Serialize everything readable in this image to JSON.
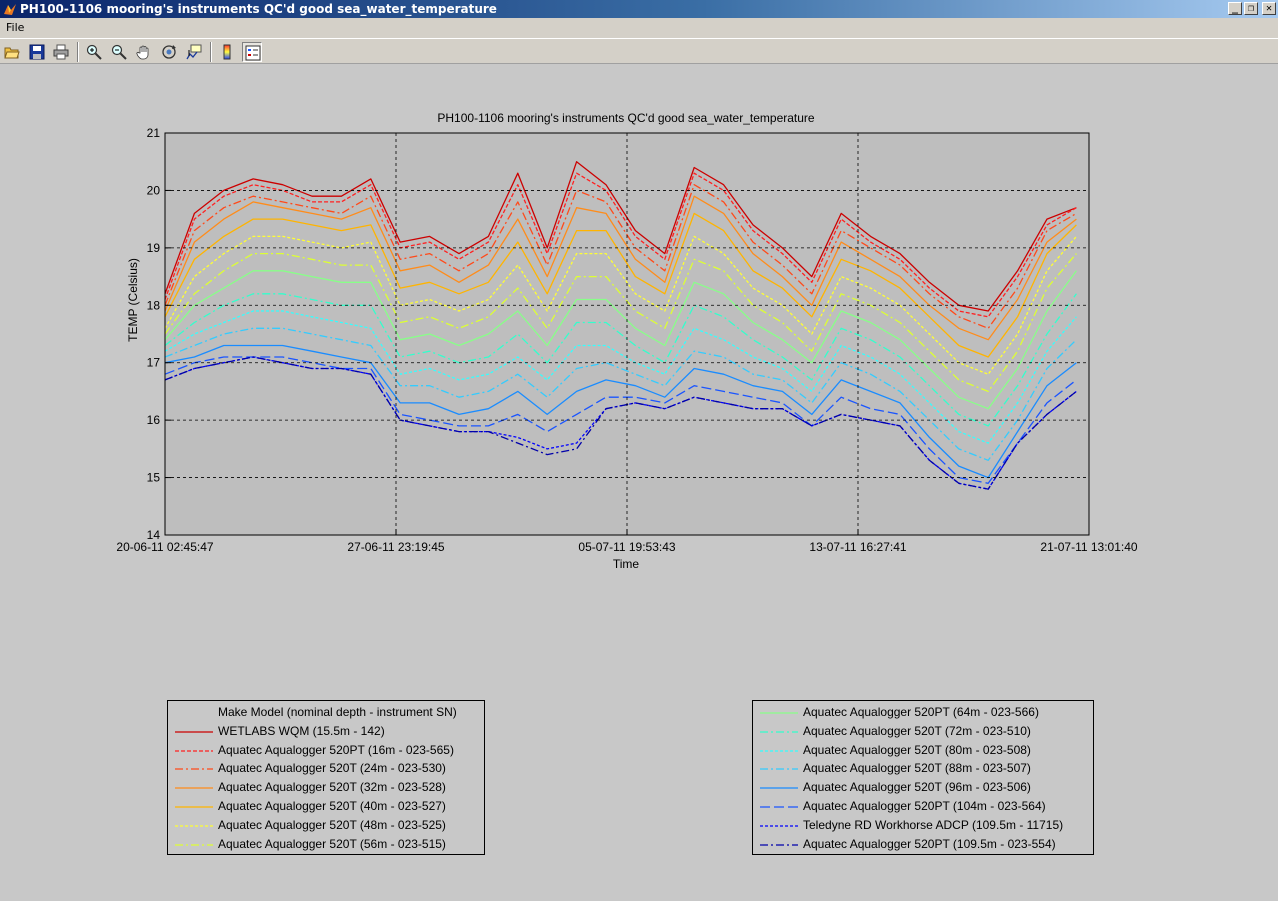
{
  "window": {
    "title": "PH100-1106 mooring's instruments QC'd good sea_water_temperature"
  },
  "menu": {
    "file_label": "File"
  },
  "toolbar": {
    "buttons": [
      "open-file-icon",
      "save-icon",
      "print-icon",
      "zoom-in-icon",
      "zoom-out-icon",
      "pan-icon",
      "rotate-3d-icon",
      "data-cursor-icon",
      "colorbar-icon",
      "legend-icon"
    ]
  },
  "chart_data": {
    "type": "line",
    "title": "PH100-1106 mooring's instruments QC'd good sea_water_temperature",
    "xlabel": "Time",
    "ylabel": "TEMP (Celsius)",
    "x_ticks": [
      "20-06-11 02:45:47",
      "27-06-11 23:19:45",
      "05-07-11 19:53:43",
      "13-07-11 16:27:41",
      "21-07-11 13:01:40"
    ],
    "xlim": [
      "20-06-11 02:45:47",
      "21-07-11 13:01:40"
    ],
    "ylim": [
      14,
      21
    ],
    "y_ticks": [
      14,
      15,
      16,
      17,
      18,
      19,
      20,
      21
    ],
    "grid": true,
    "x": [
      "20-06-11 02:45:47",
      "21-06-11 02:45:47",
      "22-06-11 02:45:47",
      "23-06-11 02:45:47",
      "24-06-11 02:45:47",
      "25-06-11 02:45:47",
      "26-06-11 02:45:47",
      "27-06-11 02:45:47",
      "28-06-11 02:45:47",
      "29-06-11 02:45:47",
      "30-06-11 02:45:47",
      "01-07-11 02:45:47",
      "02-07-11 02:45:47",
      "03-07-11 02:45:47",
      "04-07-11 02:45:47",
      "05-07-11 02:45:47",
      "06-07-11 02:45:47",
      "07-07-11 02:45:47",
      "08-07-11 02:45:47",
      "09-07-11 02:45:47",
      "10-07-11 02:45:47",
      "11-07-11 02:45:47",
      "12-07-11 02:45:47",
      "13-07-11 02:45:47",
      "14-07-11 02:45:47",
      "15-07-11 02:45:47",
      "16-07-11 02:45:47",
      "17-07-11 02:45:47",
      "18-07-11 02:45:47",
      "19-07-11 02:45:47",
      "20-07-11 02:45:47",
      "21-07-11 02:45:47"
    ],
    "series": [
      {
        "name": "WETLABS WQM (15.5m - 142)",
        "color": "#cc0000",
        "dash": "solid",
        "values": [
          18.2,
          19.6,
          20.0,
          20.2,
          20.1,
          19.9,
          19.9,
          20.2,
          19.1,
          19.2,
          18.9,
          19.2,
          20.3,
          19.0,
          20.5,
          20.1,
          19.3,
          18.9,
          20.4,
          20.1,
          19.4,
          19.0,
          18.5,
          19.6,
          19.2,
          18.9,
          18.4,
          18.0,
          17.9,
          18.6,
          19.5,
          19.7
        ]
      },
      {
        "name": "Aquatec Aqualogger 520PT (16m - 023-565)",
        "color": "#ff2020",
        "dash": "4 2",
        "values": [
          18.1,
          19.5,
          19.9,
          20.1,
          20.0,
          19.8,
          19.8,
          20.1,
          19.0,
          19.1,
          18.8,
          19.1,
          20.1,
          18.9,
          20.3,
          20.0,
          19.2,
          18.8,
          20.3,
          20.0,
          19.3,
          18.9,
          18.4,
          19.5,
          19.1,
          18.8,
          18.3,
          17.9,
          17.8,
          18.5,
          19.4,
          19.7
        ]
      },
      {
        "name": "Aquatec Aqualogger 520T (24m - 023-530)",
        "color": "#ff4a1a",
        "dash": "8 3 2 3",
        "values": [
          18.0,
          19.3,
          19.7,
          19.9,
          19.8,
          19.7,
          19.6,
          19.9,
          18.8,
          18.9,
          18.6,
          18.9,
          19.8,
          18.7,
          20.0,
          19.8,
          19.0,
          18.6,
          20.1,
          19.8,
          19.1,
          18.7,
          18.2,
          19.3,
          19.0,
          18.7,
          18.2,
          17.8,
          17.6,
          18.3,
          19.3,
          19.6
        ]
      },
      {
        "name": "Aquatec Aqualogger 520T (32m - 023-528)",
        "color": "#ff8c1a",
        "dash": "solid",
        "values": [
          17.9,
          19.1,
          19.5,
          19.8,
          19.7,
          19.6,
          19.5,
          19.7,
          18.6,
          18.7,
          18.4,
          18.7,
          19.5,
          18.5,
          19.7,
          19.6,
          18.8,
          18.4,
          19.9,
          19.6,
          18.9,
          18.5,
          18.0,
          19.1,
          18.8,
          18.5,
          18.0,
          17.6,
          17.4,
          18.1,
          19.1,
          19.5
        ]
      },
      {
        "name": "Aquatec Aqualogger 520T (40m - 023-527)",
        "color": "#ffb400",
        "dash": "solid",
        "values": [
          17.8,
          18.8,
          19.2,
          19.5,
          19.5,
          19.4,
          19.3,
          19.4,
          18.3,
          18.4,
          18.2,
          18.4,
          19.1,
          18.2,
          19.3,
          19.3,
          18.5,
          18.2,
          19.6,
          19.3,
          18.6,
          18.3,
          17.8,
          18.8,
          18.6,
          18.3,
          17.8,
          17.3,
          17.1,
          17.8,
          18.9,
          19.4
        ]
      },
      {
        "name": "Aquatec Aqualogger 520T (48m - 023-525)",
        "color": "#ffff33",
        "dash": "3 2",
        "values": [
          17.6,
          18.5,
          18.9,
          19.2,
          19.2,
          19.1,
          19.0,
          19.1,
          18.0,
          18.1,
          17.9,
          18.1,
          18.7,
          17.9,
          18.9,
          18.9,
          18.2,
          17.9,
          19.2,
          18.9,
          18.3,
          18.0,
          17.5,
          18.5,
          18.3,
          18.0,
          17.5,
          17.0,
          16.8,
          17.5,
          18.6,
          19.2
        ]
      },
      {
        "name": "Aquatec Aqualogger 520T (56m - 023-515)",
        "color": "#ddff33",
        "dash": "8 3 2 3",
        "values": [
          17.5,
          18.2,
          18.6,
          18.9,
          18.9,
          18.8,
          18.7,
          18.7,
          17.7,
          17.8,
          17.6,
          17.8,
          18.3,
          17.6,
          18.5,
          18.5,
          17.9,
          17.6,
          18.8,
          18.6,
          18.0,
          17.7,
          17.2,
          18.2,
          18.0,
          17.7,
          17.2,
          16.7,
          16.5,
          17.2,
          18.3,
          18.9
        ]
      },
      {
        "name": "Aquatec Aqualogger 520PT (64m - 023-566)",
        "color": "#88ff88",
        "dash": "solid",
        "values": [
          17.4,
          18.0,
          18.3,
          18.6,
          18.6,
          18.5,
          18.4,
          18.4,
          17.4,
          17.5,
          17.3,
          17.5,
          17.9,
          17.3,
          18.1,
          18.1,
          17.6,
          17.3,
          18.4,
          18.2,
          17.7,
          17.4,
          17.0,
          17.9,
          17.7,
          17.4,
          16.9,
          16.4,
          16.2,
          16.9,
          17.9,
          18.6
        ]
      },
      {
        "name": "Aquatec Aqualogger 520T (72m - 023-510)",
        "color": "#33ffcc",
        "dash": "8 3 2 3",
        "values": [
          17.3,
          17.7,
          18.0,
          18.2,
          18.2,
          18.1,
          18.0,
          18.0,
          17.1,
          17.2,
          17.0,
          17.1,
          17.5,
          17.0,
          17.7,
          17.7,
          17.3,
          17.0,
          18.0,
          17.8,
          17.4,
          17.1,
          16.7,
          17.6,
          17.4,
          17.1,
          16.6,
          16.1,
          15.9,
          16.6,
          17.5,
          18.2
        ]
      },
      {
        "name": "Aquatec Aqualogger 520T (80m - 023-508)",
        "color": "#33ffff",
        "dash": "3 2",
        "values": [
          17.2,
          17.5,
          17.7,
          17.9,
          17.9,
          17.8,
          17.7,
          17.6,
          16.8,
          16.9,
          16.7,
          16.8,
          17.1,
          16.7,
          17.3,
          17.3,
          17.0,
          16.8,
          17.6,
          17.4,
          17.1,
          16.9,
          16.5,
          17.3,
          17.1,
          16.8,
          16.3,
          15.8,
          15.6,
          16.3,
          17.2,
          17.8
        ]
      },
      {
        "name": "Aquatec Aqualogger 520T (88m - 023-507)",
        "color": "#33ccff",
        "dash": "8 3 2 3",
        "values": [
          17.1,
          17.3,
          17.5,
          17.6,
          17.6,
          17.5,
          17.4,
          17.3,
          16.6,
          16.6,
          16.4,
          16.5,
          16.8,
          16.4,
          16.9,
          17.0,
          16.8,
          16.6,
          17.2,
          17.1,
          16.8,
          16.7,
          16.3,
          17.0,
          16.8,
          16.5,
          16.0,
          15.5,
          15.3,
          16.0,
          16.9,
          17.4
        ]
      },
      {
        "name": "Aquatec Aqualogger 520T (96m - 023-506)",
        "color": "#1a8cff",
        "dash": "solid",
        "values": [
          17.0,
          17.1,
          17.3,
          17.3,
          17.3,
          17.2,
          17.1,
          17.0,
          16.3,
          16.3,
          16.1,
          16.2,
          16.5,
          16.1,
          16.5,
          16.7,
          16.6,
          16.4,
          16.9,
          16.8,
          16.6,
          16.5,
          16.1,
          16.7,
          16.5,
          16.3,
          15.7,
          15.2,
          15.0,
          15.8,
          16.6,
          17.0
        ]
      },
      {
        "name": "Aquatec Aqualogger 520PT (104m - 023-564)",
        "color": "#1a55ff",
        "dash": "10 4",
        "values": [
          16.8,
          17.0,
          17.1,
          17.1,
          17.1,
          17.0,
          16.9,
          16.9,
          16.1,
          16.0,
          15.9,
          15.9,
          16.1,
          15.8,
          16.1,
          16.4,
          16.4,
          16.3,
          16.6,
          16.5,
          16.4,
          16.3,
          15.9,
          16.4,
          16.2,
          16.1,
          15.5,
          15.0,
          14.9,
          15.6,
          16.3,
          16.7
        ]
      },
      {
        "name": "Teledyne RD Workhorse ADCP (109.5m - 11715)",
        "color": "#0000ff",
        "dash": "3 2",
        "values": [
          16.7,
          16.9,
          17.0,
          17.1,
          17.0,
          16.9,
          16.9,
          16.8,
          16.0,
          15.9,
          15.8,
          15.8,
          15.7,
          15.5,
          15.6,
          16.2,
          16.3,
          16.2,
          16.4,
          16.3,
          16.2,
          16.2,
          15.9,
          16.1,
          16.0,
          15.9,
          15.3,
          14.9,
          14.8,
          15.6,
          16.1,
          16.5
        ]
      },
      {
        "name": "Aquatec Aqualogger 520PT (109.5m - 023-554)",
        "color": "#0000aa",
        "dash": "8 3 2 3",
        "values": [
          16.7,
          16.9,
          17.0,
          17.1,
          17.0,
          16.9,
          16.9,
          16.8,
          16.0,
          15.9,
          15.8,
          15.8,
          15.6,
          15.4,
          15.5,
          16.2,
          16.3,
          16.2,
          16.4,
          16.3,
          16.2,
          16.2,
          15.9,
          16.1,
          16.0,
          15.9,
          15.3,
          14.9,
          14.8,
          15.6,
          16.1,
          16.5
        ]
      }
    ],
    "legend_header": "Make Model (nominal depth - instrument SN)",
    "legend_placement": "bottom, two columns"
  },
  "colors": {
    "plot_background": "#bebebe",
    "figure_background": "#c8c8c8",
    "title_bar_start": "#0a246a",
    "title_bar_end": "#a6caf0"
  }
}
